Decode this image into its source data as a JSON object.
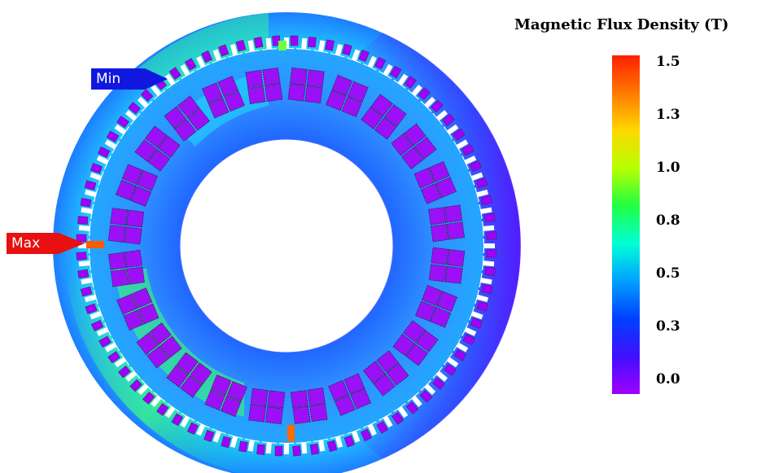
{
  "legend": {
    "title": "Magnetic Flux Density (T)",
    "ticks": [
      "1.5",
      "1.3",
      "1.0",
      "0.8",
      "0.5",
      "0.3",
      "0.0"
    ],
    "colors": [
      "#ff1f00",
      "#ff7a00",
      "#ffd800",
      "#b6ff00",
      "#20ff40",
      "#00ffd8",
      "#00a0ff",
      "#0040ff",
      "#4010ff",
      "#a000ff"
    ]
  },
  "markers": {
    "max_label": "Max",
    "min_label": "Min",
    "max_color": "#e81010",
    "min_color": "#1018e0"
  },
  "model": {
    "stator_slots": 36,
    "rotor_coil_pairs": 24
  }
}
